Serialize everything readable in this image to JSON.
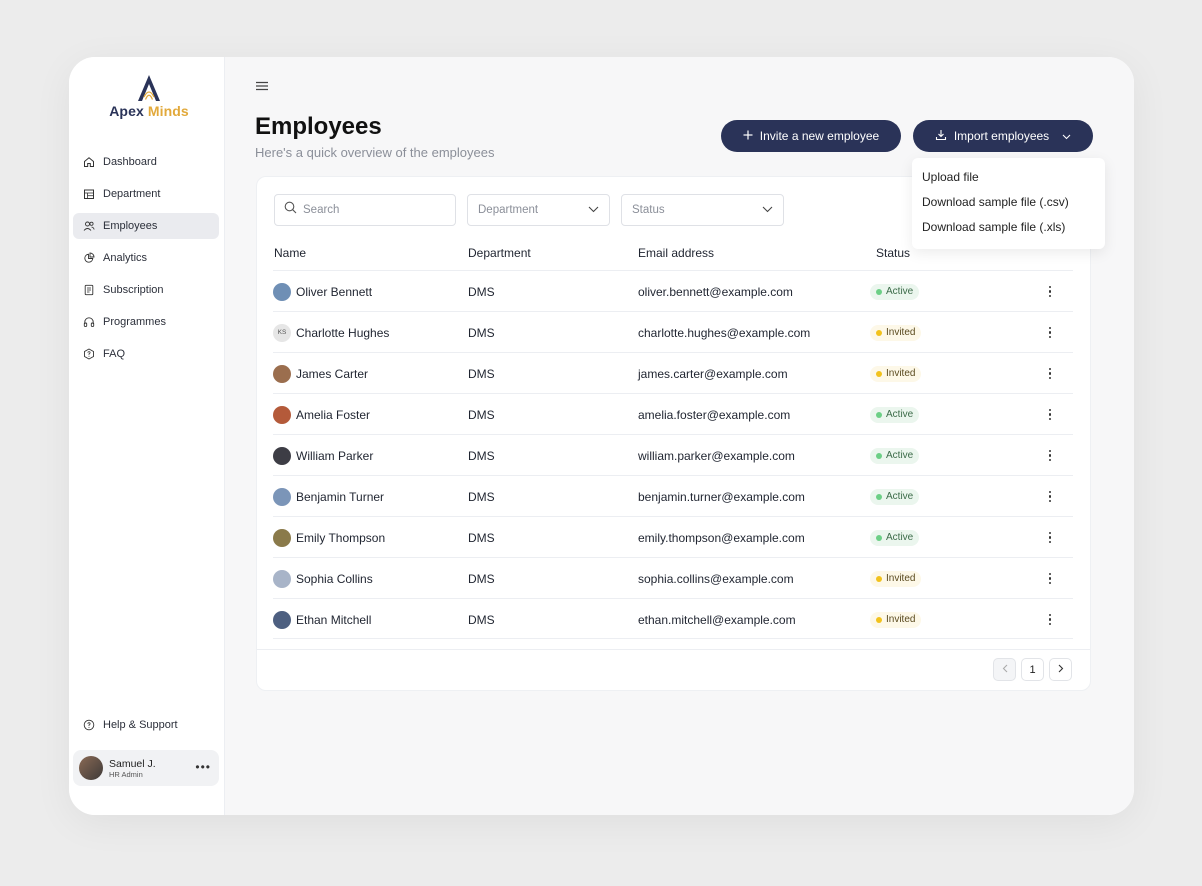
{
  "brand": {
    "name_a": "Apex",
    "name_b": "Minds"
  },
  "sidebar": {
    "items": [
      {
        "label": "Dashboard",
        "icon": "home-icon",
        "active": false
      },
      {
        "label": "Department",
        "icon": "building-icon",
        "active": false
      },
      {
        "label": "Employees",
        "icon": "users-icon",
        "active": true
      },
      {
        "label": "Analytics",
        "icon": "pie-chart-icon",
        "active": false
      },
      {
        "label": "Subscription",
        "icon": "receipt-icon",
        "active": false
      },
      {
        "label": "Programmes",
        "icon": "headphones-icon",
        "active": false
      },
      {
        "label": "FAQ",
        "icon": "question-icon",
        "active": false
      }
    ],
    "help_label": "Help & Support",
    "user": {
      "name": "Samuel J.",
      "role": "HR Admin"
    }
  },
  "header": {
    "title": "Employees",
    "subtitle": "Here's a quick overview of the employees",
    "invite_label": "Invite a new employee",
    "import_label": "Import employees"
  },
  "import_menu": {
    "items": [
      "Upload file",
      "Download sample file (.csv)",
      "Download sample file (.xls)"
    ]
  },
  "filters": {
    "search_placeholder": "Search",
    "department_placeholder": "Department",
    "status_placeholder": "Status"
  },
  "table": {
    "columns": [
      "Name",
      "Department",
      "Email address",
      "Status"
    ],
    "rows": [
      {
        "name": "Oliver Bennett",
        "initials": "",
        "department": "DMS",
        "email": "oliver.bennett@example.com",
        "status": "Active"
      },
      {
        "name": "Charlotte Hughes",
        "initials": "KS",
        "department": "DMS",
        "email": "charlotte.hughes@example.com",
        "status": "Invited"
      },
      {
        "name": "James Carter",
        "initials": "",
        "department": "DMS",
        "email": "james.carter@example.com",
        "status": "Invited"
      },
      {
        "name": "Amelia Foster",
        "initials": "",
        "department": "DMS",
        "email": "amelia.foster@example.com",
        "status": "Active"
      },
      {
        "name": "William Parker",
        "initials": "",
        "department": "DMS",
        "email": "william.parker@example.com",
        "status": "Active"
      },
      {
        "name": "Benjamin Turner",
        "initials": "",
        "department": "DMS",
        "email": "benjamin.turner@example.com",
        "status": "Active"
      },
      {
        "name": "Emily Thompson",
        "initials": "",
        "department": "DMS",
        "email": "emily.thompson@example.com",
        "status": "Active"
      },
      {
        "name": "Sophia Collins",
        "initials": "",
        "department": "DMS",
        "email": "sophia.collins@example.com",
        "status": "Invited"
      },
      {
        "name": "Ethan Mitchell",
        "initials": "",
        "department": "DMS",
        "email": "ethan.mitchell@example.com",
        "status": "Invited"
      }
    ]
  },
  "pagination": {
    "current_page": "1"
  },
  "colors": {
    "primary": "#2a3358",
    "accent": "#e2a93b",
    "active": "#6ccf86",
    "invited": "#f2c21c"
  }
}
